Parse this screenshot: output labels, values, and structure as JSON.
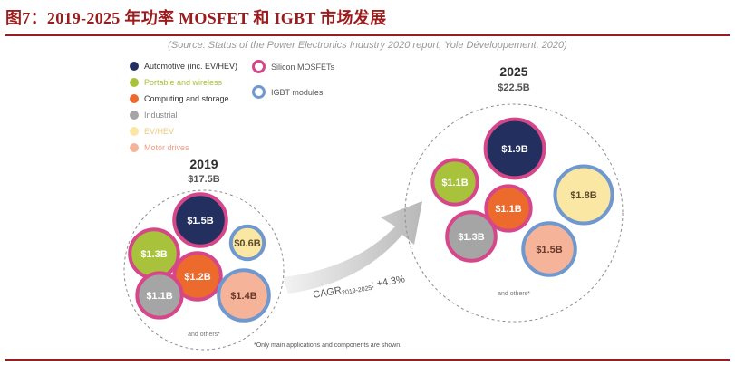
{
  "figure": {
    "title": "图7：2019-2025 年功率 MOSFET 和 IGBT 市场发展",
    "source": "(Source: Status of the Power Electronics Industry 2020 report, Yole Développement, 2020)",
    "note": "*Only main applications and components are shown."
  },
  "colors": {
    "title": "#9b1c1c",
    "automotive": "#232f5e",
    "portable": "#a9c23b",
    "computing": "#ec6a2c",
    "industrial": "#a5a5a5",
    "evhev": "#fbe7a4",
    "motor": "#f5b49a",
    "mosfet_ring": "#d6478a",
    "igbt_ring": "#6f98cf"
  },
  "legend": {
    "applications": [
      {
        "label": "Automotive (inc. EV/HEV)",
        "color": "#232f5e",
        "text_color": "#333333"
      },
      {
        "label": "Portable and wireless",
        "color": "#a9c23b",
        "text_color": "#a9c23b"
      },
      {
        "label": "Computing and storage",
        "color": "#ec6a2c",
        "text_color": "#333333"
      },
      {
        "label": "Industrial",
        "color": "#a5a5a5",
        "text_color": "#8a8a8a"
      },
      {
        "label": "EV/HEV",
        "color": "#fbe7a4",
        "text_color": "#f1c979"
      },
      {
        "label": "Motor drives",
        "color": "#f5b49a",
        "text_color": "#ef9b86"
      }
    ],
    "components": [
      {
        "label": "Silicon MOSFETs",
        "color": "#d6478a"
      },
      {
        "label": "IGBT modules",
        "color": "#6f98cf"
      }
    ]
  },
  "chart_data": [
    {
      "type": "bubble",
      "year": "2019",
      "total_label": "$17.5B",
      "total_value": 17.5,
      "unit": "$B",
      "others_label": "and others*",
      "bubbles": [
        {
          "label": "$1.5B",
          "value": 1.5,
          "application": "Automotive (inc. EV/HEV)",
          "component": "Silicon MOSFETs"
        },
        {
          "label": "$1.3B",
          "value": 1.3,
          "application": "Portable and wireless",
          "component": "Silicon MOSFETs"
        },
        {
          "label": "$0.6B",
          "value": 0.6,
          "application": "EV/HEV",
          "component": "IGBT modules"
        },
        {
          "label": "$1.2B",
          "value": 1.2,
          "application": "Computing and storage",
          "component": "Silicon MOSFETs"
        },
        {
          "label": "$1.1B",
          "value": 1.1,
          "application": "Industrial",
          "component": "Silicon MOSFETs"
        },
        {
          "label": "$1.4B",
          "value": 1.4,
          "application": "Motor drives",
          "component": "IGBT modules"
        }
      ]
    },
    {
      "type": "bubble",
      "year": "2025",
      "total_label": "$22.5B",
      "total_value": 22.5,
      "unit": "$B",
      "others_label": "and others*",
      "bubbles": [
        {
          "label": "$1.9B",
          "value": 1.9,
          "application": "Automotive (inc. EV/HEV)",
          "component": "Silicon MOSFETs"
        },
        {
          "label": "$1.1B",
          "value": 1.1,
          "application": "Portable and wireless",
          "component": "Silicon MOSFETs"
        },
        {
          "label": "$1.8B",
          "value": 1.8,
          "application": "EV/HEV",
          "component": "IGBT modules"
        },
        {
          "label": "$1.1B",
          "value": 1.1,
          "application": "Computing and storage",
          "component": "Silicon MOSFETs"
        },
        {
          "label": "$1.3B",
          "value": 1.3,
          "application": "Industrial",
          "component": "Silicon MOSFETs"
        },
        {
          "label": "$1.5B",
          "value": 1.5,
          "application": "Motor drives",
          "component": "IGBT modules"
        }
      ]
    }
  ],
  "arrow": {
    "cagr_prefix": "CAGR",
    "cagr_sub": "2019-2025",
    "cagr_suffix": ": +4.3%"
  }
}
